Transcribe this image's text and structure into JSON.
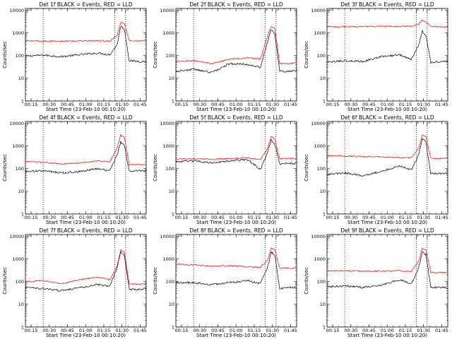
{
  "chart_data": [
    {
      "type": "line",
      "title": "Det 1f BLACK = Events, RED = LLD",
      "xlabel": "Start Time (23-Feb-10 00:10:20)",
      "ylabel": "Counts/sec",
      "x_ticks": [
        "00:15",
        "00:30",
        "00:45",
        "01:00",
        "01:15",
        "01:30",
        "01:45"
      ],
      "y_ticks": [
        "1",
        "10",
        "100",
        "1000",
        "10000"
      ],
      "ylim": [
        1,
        12000
      ],
      "y_scale": "log",
      "xlim": [
        "00:10:20",
        "01:50"
      ],
      "time_markers": [
        "00:25",
        "01:24",
        "01:33"
      ],
      "series": [
        {
          "name": "Events",
          "color": "#000000",
          "x": [
            "00:10",
            "00:25",
            "00:40",
            "00:55",
            "01:10",
            "01:20",
            "01:26",
            "01:29",
            "01:32",
            "01:36",
            "01:45",
            "01:50"
          ],
          "values": [
            95,
            105,
            90,
            110,
            130,
            110,
            300,
            2000,
            1500,
            60,
            55,
            55
          ]
        },
        {
          "name": "LLD",
          "color": "#ff0000",
          "x": [
            "00:10",
            "00:25",
            "00:40",
            "00:55",
            "01:10",
            "01:20",
            "01:26",
            "01:29",
            "01:32",
            "01:36",
            "01:45",
            "01:50"
          ],
          "values": [
            450,
            440,
            430,
            450,
            450,
            440,
            800,
            3000,
            2500,
            460,
            450,
            450
          ]
        }
      ]
    },
    {
      "type": "line",
      "title": "Det 2f BLACK = Events, RED = LLD",
      "xlabel": "Start Time (23-Feb-10 00:10:20)",
      "ylabel": "Counts/sec",
      "x_ticks": [
        "00:15",
        "00:30",
        "00:45",
        "01:00",
        "01:15",
        "01:30",
        "01:45"
      ],
      "y_ticks": [
        "1",
        "10",
        "100",
        "1000",
        "10000"
      ],
      "ylim": [
        1,
        12000
      ],
      "y_scale": "log",
      "xlim": [
        "00:10:20",
        "01:50"
      ],
      "time_markers": [
        "00:25",
        "01:24",
        "01:33"
      ],
      "series": [
        {
          "name": "Events",
          "color": "#000000",
          "x": [
            "00:10",
            "00:25",
            "00:40",
            "00:55",
            "01:10",
            "01:20",
            "01:26",
            "01:29",
            "01:32",
            "01:36",
            "01:45",
            "01:50"
          ],
          "values": [
            20,
            25,
            18,
            45,
            40,
            30,
            400,
            1500,
            900,
            20,
            20,
            25
          ]
        },
        {
          "name": "LLD",
          "color": "#ff0000",
          "x": [
            "00:10",
            "00:25",
            "00:40",
            "00:55",
            "01:10",
            "01:20",
            "01:26",
            "01:29",
            "01:32",
            "01:36",
            "01:45",
            "01:50"
          ],
          "values": [
            55,
            60,
            45,
            70,
            80,
            70,
            700,
            2000,
            1600,
            45,
            45,
            50
          ]
        }
      ]
    },
    {
      "type": "line",
      "title": "Det 3f BLACK = Events, RED = LLD",
      "xlabel": "Start Time (23-Feb-10 00:10:20)",
      "ylabel": "Counts/sec",
      "x_ticks": [
        "00:15",
        "00:30",
        "00:45",
        "01:00",
        "01:15",
        "01:30",
        "01:45"
      ],
      "y_ticks": [
        "1",
        "10",
        "100",
        "1000",
        "10000"
      ],
      "ylim": [
        1,
        12000
      ],
      "y_scale": "log",
      "xlim": [
        "00:10:20",
        "01:50"
      ],
      "time_markers": [
        "00:25",
        "01:24",
        "01:33"
      ],
      "series": [
        {
          "name": "Events",
          "color": "#000000",
          "x": [
            "00:10",
            "00:25",
            "00:40",
            "00:55",
            "01:10",
            "01:20",
            "01:26",
            "01:29",
            "01:32",
            "01:36",
            "01:45",
            "01:50"
          ],
          "values": [
            50,
            60,
            55,
            90,
            110,
            70,
            300,
            1200,
            800,
            50,
            55,
            60
          ]
        },
        {
          "name": "LLD",
          "color": "#ff0000",
          "x": [
            "00:10",
            "00:25",
            "00:40",
            "00:55",
            "01:10",
            "01:20",
            "01:26",
            "01:29",
            "01:32",
            "01:36",
            "01:45",
            "01:50"
          ],
          "values": [
            1900,
            1900,
            1900,
            1950,
            1950,
            1950,
            2500,
            3500,
            3000,
            1900,
            1900,
            1900
          ]
        }
      ]
    },
    {
      "type": "line",
      "title": "Det 4f BLACK = Events, RED = LLD",
      "xlabel": "Start Time (23-Feb-10 00:10:20)",
      "ylabel": "Counts/sec",
      "x_ticks": [
        "00:15",
        "00:30",
        "00:45",
        "01:00",
        "01:15",
        "01:30",
        "01:45"
      ],
      "y_ticks": [
        "1",
        "10",
        "100",
        "1000",
        "10000"
      ],
      "ylim": [
        1,
        12000
      ],
      "y_scale": "log",
      "xlim": [
        "00:10:20",
        "01:50"
      ],
      "time_markers": [
        "00:25",
        "01:24",
        "01:33"
      ],
      "series": [
        {
          "name": "Events",
          "color": "#000000",
          "x": [
            "00:10",
            "00:25",
            "00:40",
            "00:55",
            "01:10",
            "01:20",
            "01:26",
            "01:29",
            "01:32",
            "01:36",
            "01:45",
            "01:50"
          ],
          "values": [
            75,
            80,
            65,
            75,
            100,
            80,
            400,
            1500,
            1000,
            80,
            80,
            80
          ]
        },
        {
          "name": "LLD",
          "color": "#ff0000",
          "x": [
            "00:10",
            "00:25",
            "00:40",
            "00:55",
            "01:10",
            "01:20",
            "01:26",
            "01:29",
            "01:32",
            "01:36",
            "01:45",
            "01:50"
          ],
          "values": [
            200,
            190,
            160,
            180,
            220,
            200,
            800,
            3000,
            2500,
            150,
            150,
            150
          ]
        }
      ]
    },
    {
      "type": "line",
      "title": "Det 5f BLACK = Events, RED = LLD",
      "xlabel": "Start Time (23-Feb-10 00:10:20)",
      "ylabel": "Counts/sec",
      "x_ticks": [
        "00:15",
        "00:30",
        "00:45",
        "01:00",
        "01:15",
        "01:30",
        "01:45"
      ],
      "y_ticks": [
        "1",
        "10",
        "100",
        "1000",
        "10000"
      ],
      "ylim": [
        1,
        12000
      ],
      "y_scale": "log",
      "xlim": [
        "00:10:20",
        "01:50"
      ],
      "time_markers": [
        "00:25",
        "01:24",
        "01:33"
      ],
      "series": [
        {
          "name": "Events",
          "color": "#000000",
          "x": [
            "00:10",
            "00:25",
            "00:40",
            "00:55",
            "01:10",
            "01:20",
            "01:26",
            "01:29",
            "01:32",
            "01:36",
            "01:45",
            "01:50"
          ],
          "values": [
            200,
            220,
            180,
            220,
            250,
            90,
            500,
            1800,
            1200,
            160,
            170,
            170
          ]
        },
        {
          "name": "LLD",
          "color": "#ff0000",
          "x": [
            "00:10",
            "00:25",
            "00:40",
            "00:55",
            "01:10",
            "01:20",
            "01:26",
            "01:29",
            "01:32",
            "01:36",
            "01:45",
            "01:50"
          ],
          "values": [
            270,
            270,
            260,
            280,
            300,
            250,
            800,
            2500,
            2000,
            280,
            280,
            270
          ]
        }
      ]
    },
    {
      "type": "line",
      "title": "Det 6f BLACK = Events, RED = LLD",
      "xlabel": "Start Time (23-Feb-10 00:10:20)",
      "ylabel": "Counts/sec",
      "x_ticks": [
        "00:15",
        "00:30",
        "00:45",
        "01:00",
        "01:15",
        "01:30",
        "01:45"
      ],
      "y_ticks": [
        "1",
        "10",
        "100",
        "1000",
        "10000"
      ],
      "ylim": [
        1,
        12000
      ],
      "y_scale": "log",
      "xlim": [
        "00:10:20",
        "01:50"
      ],
      "time_markers": [
        "00:25",
        "01:24",
        "01:33"
      ],
      "series": [
        {
          "name": "Events",
          "color": "#000000",
          "x": [
            "00:10",
            "00:25",
            "00:40",
            "00:55",
            "01:10",
            "01:20",
            "01:26",
            "01:29",
            "01:32",
            "01:36",
            "01:45",
            "01:50"
          ],
          "values": [
            55,
            65,
            50,
            75,
            130,
            90,
            400,
            2000,
            1500,
            60,
            60,
            60
          ]
        },
        {
          "name": "LLD",
          "color": "#ff0000",
          "x": [
            "00:10",
            "00:25",
            "00:40",
            "00:55",
            "01:10",
            "01:20",
            "01:26",
            "01:29",
            "01:32",
            "01:36",
            "01:45",
            "01:50"
          ],
          "values": [
            370,
            360,
            340,
            330,
            300,
            300,
            800,
            3000,
            2500,
            280,
            280,
            280
          ]
        }
      ]
    },
    {
      "type": "line",
      "title": "Det 7f BLACK = Events, RED = LLD",
      "xlabel": "Start Time (23-Feb-10 00:10:20)",
      "ylabel": "Counts/sec",
      "x_ticks": [
        "00:15",
        "00:30",
        "00:45",
        "01:00",
        "01:15",
        "01:30",
        "01:45"
      ],
      "y_ticks": [
        "1",
        "10",
        "100",
        "1000",
        "10000"
      ],
      "ylim": [
        1,
        12000
      ],
      "y_scale": "log",
      "xlim": [
        "00:10:20",
        "01:50"
      ],
      "time_markers": [
        "00:25",
        "01:24",
        "01:33"
      ],
      "series": [
        {
          "name": "Events",
          "color": "#000000",
          "x": [
            "00:10",
            "00:25",
            "00:40",
            "00:55",
            "01:10",
            "01:20",
            "01:26",
            "01:29",
            "01:32",
            "01:36",
            "01:45",
            "01:50"
          ],
          "values": [
            55,
            50,
            40,
            55,
            75,
            60,
            400,
            2000,
            1500,
            45,
            45,
            50
          ]
        },
        {
          "name": "LLD",
          "color": "#ff0000",
          "x": [
            "00:10",
            "00:25",
            "00:40",
            "00:55",
            "01:10",
            "01:20",
            "01:26",
            "01:29",
            "01:32",
            "01:36",
            "01:45",
            "01:50"
          ],
          "values": [
            100,
            110,
            80,
            120,
            160,
            120,
            500,
            2500,
            2000,
            80,
            75,
            80
          ]
        }
      ]
    },
    {
      "type": "line",
      "title": "Det 8f BLACK = Events, RED = LLD",
      "xlabel": "Start Time (23-Feb-10 00:10:20)",
      "ylabel": "Counts/sec",
      "x_ticks": [
        "00:15",
        "00:30",
        "00:45",
        "01:00",
        "01:15",
        "01:30",
        "01:45"
      ],
      "y_ticks": [
        "1",
        "10",
        "100",
        "1000",
        "10000"
      ],
      "ylim": [
        1,
        12000
      ],
      "y_scale": "log",
      "xlim": [
        "00:10:20",
        "01:50"
      ],
      "time_markers": [
        "00:25",
        "01:24",
        "01:33"
      ],
      "series": [
        {
          "name": "Events",
          "color": "#000000",
          "x": [
            "00:10",
            "00:25",
            "00:40",
            "00:55",
            "01:10",
            "01:20",
            "01:26",
            "01:29",
            "01:32",
            "01:36",
            "01:45",
            "01:50"
          ],
          "values": [
            90,
            90,
            75,
            90,
            110,
            80,
            400,
            2000,
            1500,
            50,
            55,
            55
          ]
        },
        {
          "name": "LLD",
          "color": "#ff0000",
          "x": [
            "00:10",
            "00:25",
            "00:40",
            "00:55",
            "01:10",
            "01:20",
            "01:26",
            "01:29",
            "01:32",
            "01:36",
            "01:45",
            "01:50"
          ],
          "values": [
            600,
            550,
            480,
            500,
            450,
            420,
            900,
            3000,
            2500,
            400,
            400,
            400
          ]
        }
      ]
    },
    {
      "type": "line",
      "title": "Det 9f BLACK = Events, RED = LLD",
      "xlabel": "Start Time (23-Feb-10 00:10:20)",
      "ylabel": "Counts/sec",
      "x_ticks": [
        "00:15",
        "00:30",
        "00:45",
        "01:00",
        "01:15",
        "01:30",
        "01:45"
      ],
      "y_ticks": [
        "1",
        "10",
        "100",
        "1000",
        "10000"
      ],
      "ylim": [
        1,
        12000
      ],
      "y_scale": "log",
      "xlim": [
        "00:10:20",
        "01:50"
      ],
      "time_markers": [
        "00:25",
        "01:24",
        "01:33"
      ],
      "series": [
        {
          "name": "Events",
          "color": "#000000",
          "x": [
            "00:10",
            "00:25",
            "00:40",
            "00:55",
            "01:10",
            "01:20",
            "01:26",
            "01:29",
            "01:32",
            "01:36",
            "01:45",
            "01:50"
          ],
          "values": [
            60,
            65,
            55,
            70,
            120,
            80,
            400,
            2000,
            1500,
            55,
            55,
            55
          ]
        },
        {
          "name": "LLD",
          "color": "#ff0000",
          "x": [
            "00:10",
            "00:25",
            "00:40",
            "00:55",
            "01:10",
            "01:20",
            "01:26",
            "01:29",
            "01:32",
            "01:36",
            "01:45",
            "01:50"
          ],
          "values": [
            300,
            300,
            290,
            290,
            300,
            280,
            800,
            3000,
            2500,
            250,
            250,
            250
          ]
        }
      ]
    }
  ]
}
